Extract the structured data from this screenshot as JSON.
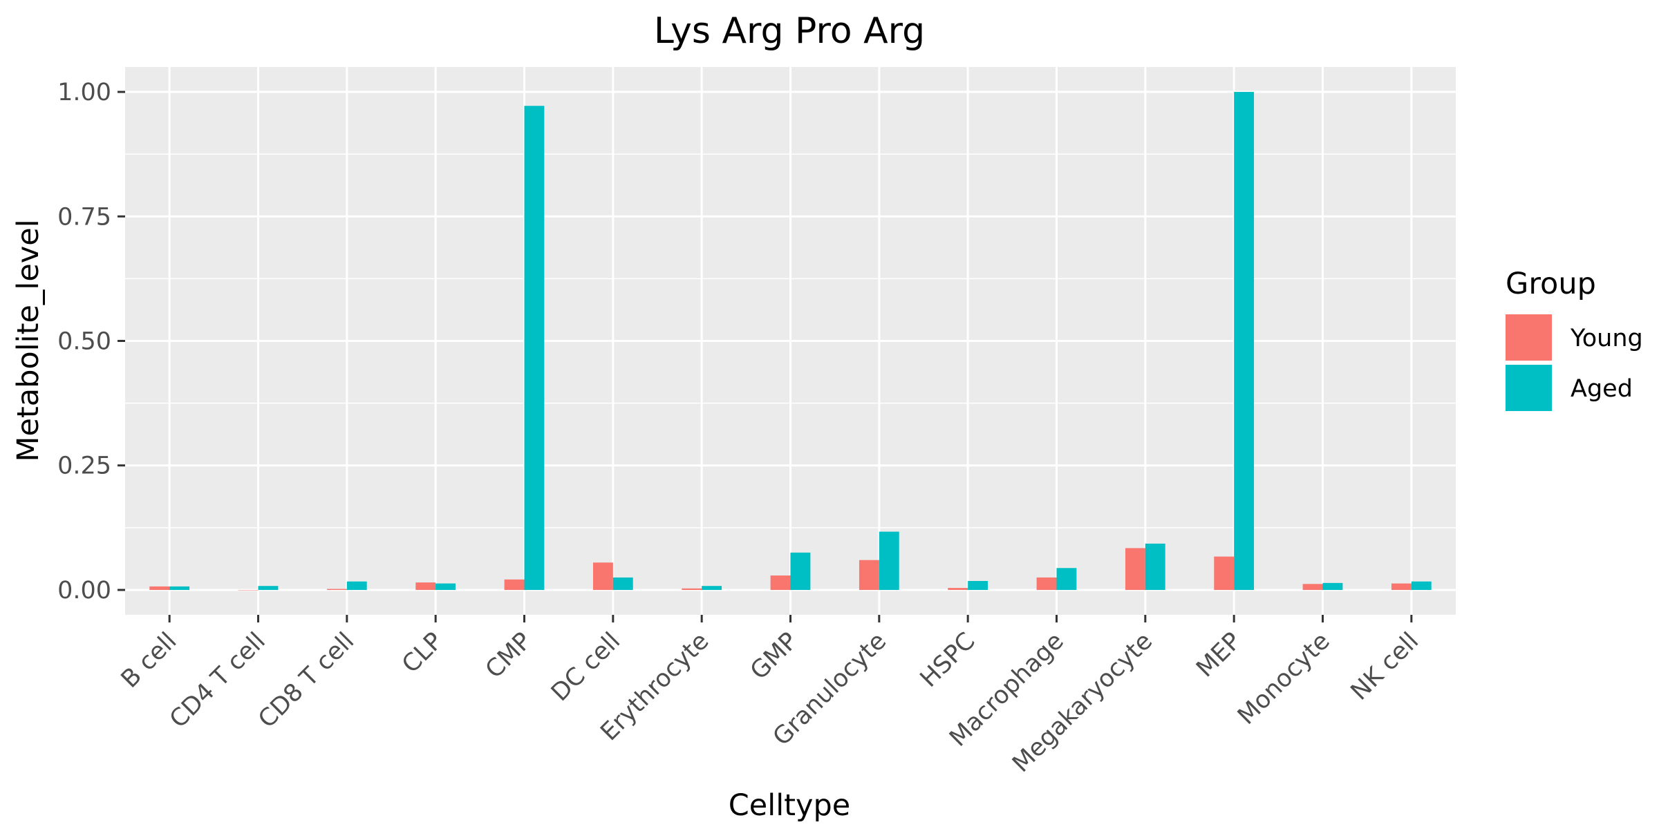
{
  "chart_data": {
    "type": "bar",
    "title": "Lys Arg Pro Arg",
    "xlabel": "Celltype",
    "ylabel": "Metabolite_level",
    "categories": [
      "B cell",
      "CD4 T cell",
      "CD8 T cell",
      "CLP",
      "CMP",
      "DC cell",
      "Erythrocyte",
      "GMP",
      "Granulocyte",
      "HSPC",
      "Macrophage",
      "Megakaryocyte",
      "MEP",
      "Monocyte",
      "NK cell"
    ],
    "series": [
      {
        "name": "Young",
        "color": "#F8766D",
        "values": [
          0.007,
          0.0,
          0.002,
          0.015,
          0.021,
          0.055,
          0.003,
          0.029,
          0.06,
          0.004,
          0.025,
          0.084,
          0.067,
          0.012,
          0.013
        ]
      },
      {
        "name": "Aged",
        "color": "#00BFC4",
        "values": [
          0.007,
          0.008,
          0.017,
          0.013,
          0.972,
          0.025,
          0.008,
          0.075,
          0.117,
          0.018,
          0.044,
          0.093,
          1.0,
          0.014,
          0.017
        ]
      }
    ],
    "ylim": [
      -0.05,
      1.05
    ],
    "yticks": [
      0.0,
      0.25,
      0.5,
      0.75,
      1.0
    ],
    "ytick_labels": [
      "0.00",
      "0.25",
      "0.50",
      "0.75",
      "1.00"
    ],
    "grid": true,
    "legend": {
      "title": "Group",
      "position": "right"
    },
    "panel_color": "#EBEBEB",
    "grid_color": "#FFFFFF"
  }
}
